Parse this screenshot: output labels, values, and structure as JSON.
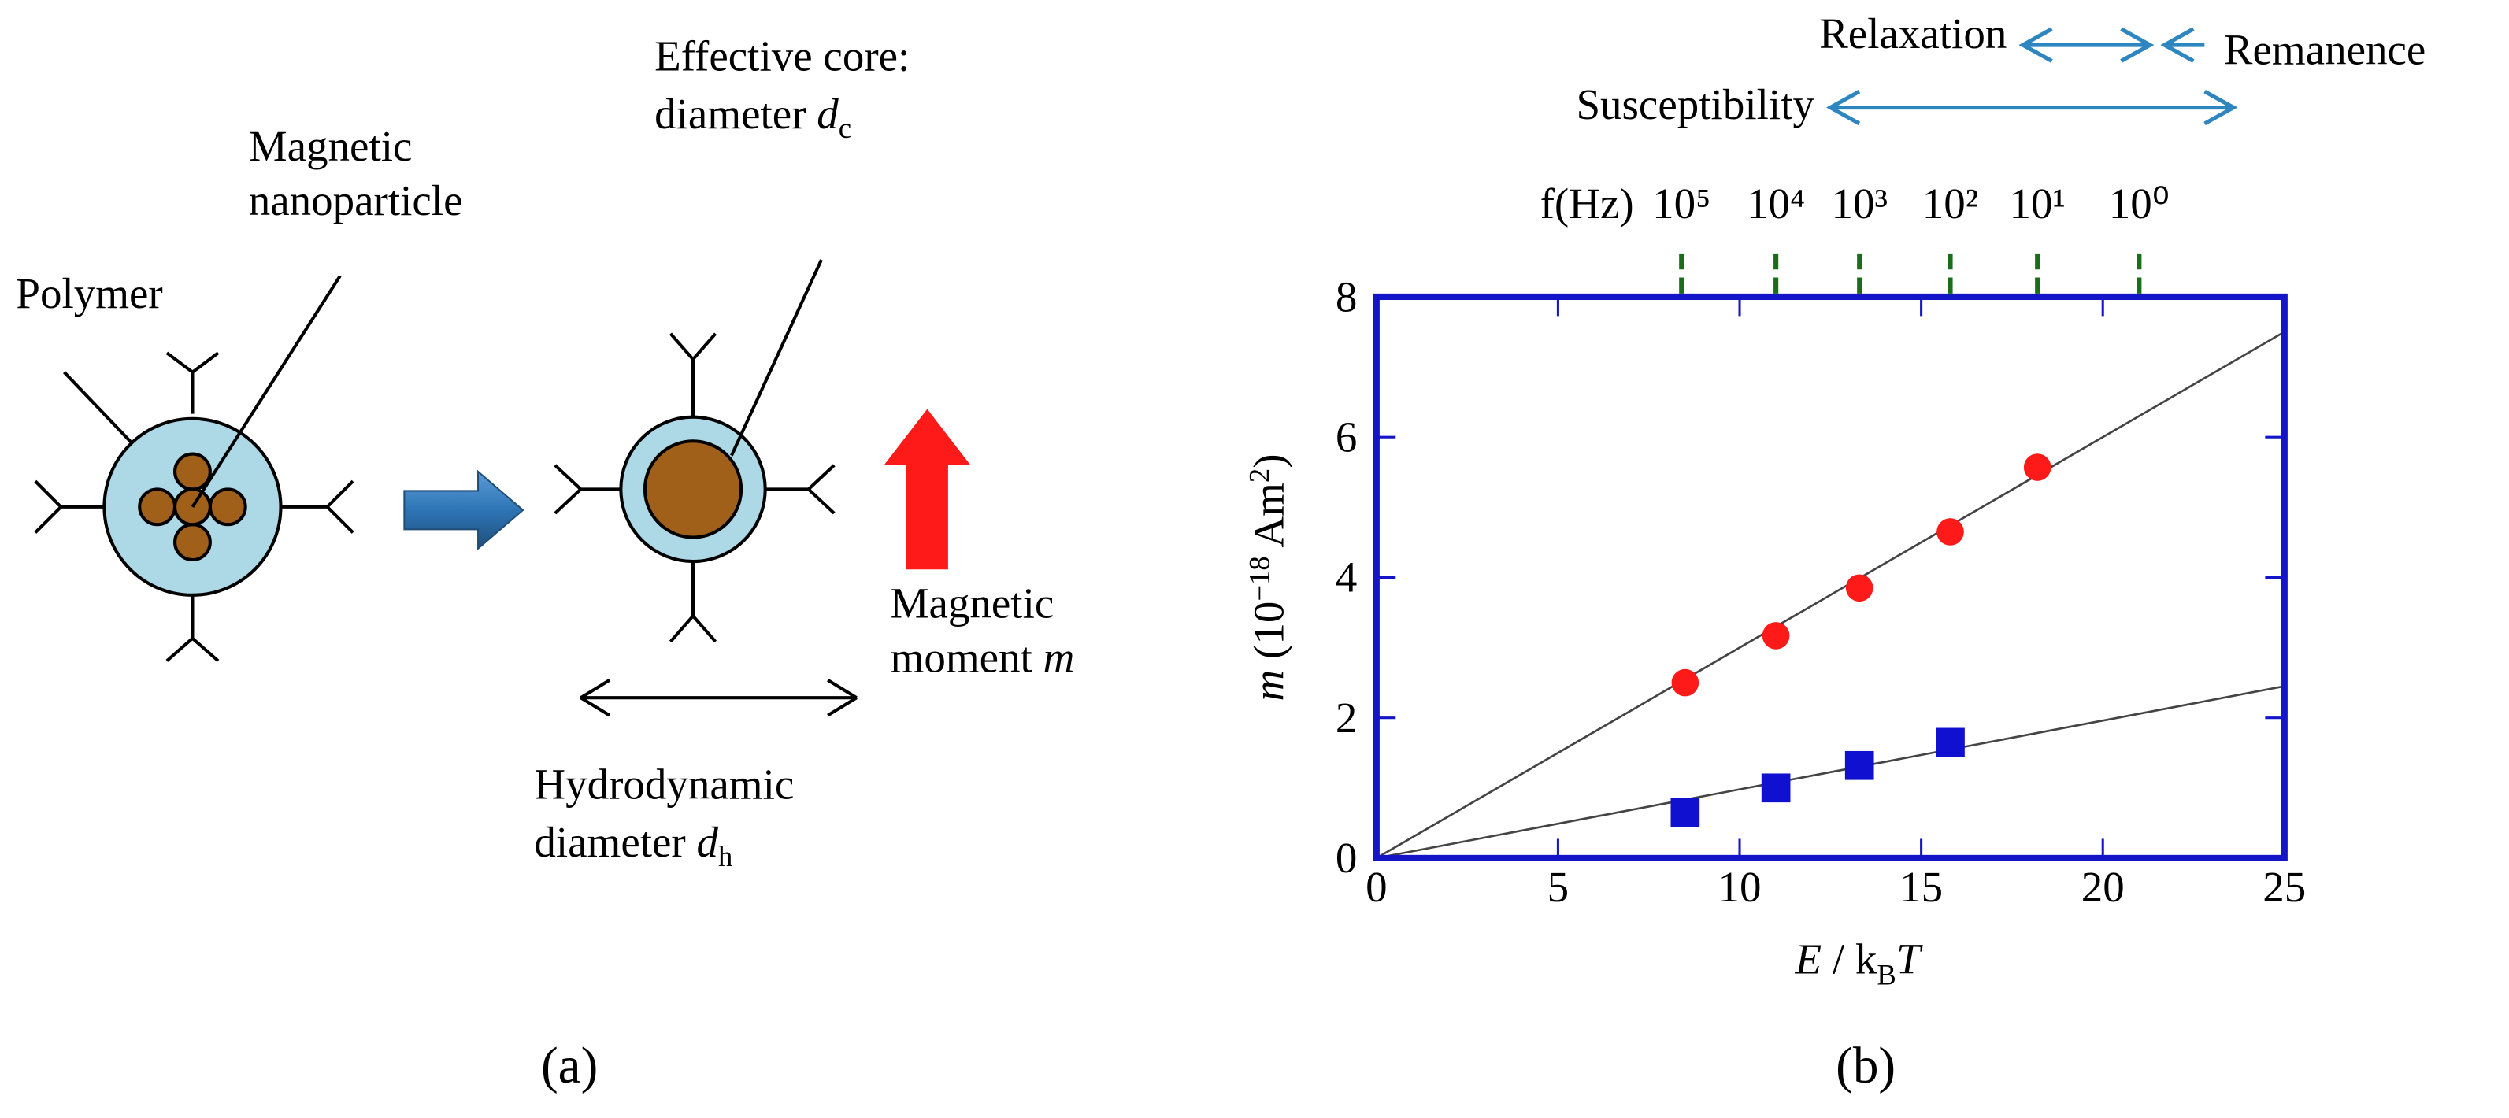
{
  "panel_a": {
    "label": "(a)",
    "polymer": "Polymer",
    "nanoparticle": [
      "Magnetic",
      "nanoparticle"
    ],
    "core": [
      "Effective core:",
      "diameter ",
      "d",
      "c"
    ],
    "moment": [
      "Magnetic",
      "moment ",
      "m"
    ],
    "hydro": [
      "Hydrodynamic",
      "diameter ",
      "d",
      "h"
    ]
  },
  "chart_data": {
    "type": "scatter",
    "label": "(b)",
    "x_label": [
      "E",
      " / k",
      "B",
      "T"
    ],
    "y_label": [
      "m",
      " (10",
      "−18",
      " Am",
      "2",
      ")"
    ],
    "xlim": [
      0,
      25
    ],
    "ylim": [
      0,
      8
    ],
    "xticks": [
      0,
      5,
      10,
      15,
      20,
      25
    ],
    "yticks": [
      0,
      2,
      4,
      6,
      8
    ],
    "frame_color": "#1414c8",
    "series": [
      {
        "color": "#ff1a1a",
        "marker": "circle",
        "x": [
          8.5,
          11,
          13.3,
          15.8,
          18.2
        ],
        "values": [
          2.5,
          3.17,
          3.85,
          4.65,
          5.57
        ]
      },
      {
        "color": "#1010d0",
        "marker": "square",
        "x": [
          8.5,
          11,
          13.3,
          15.8
        ],
        "values": [
          0.65,
          1.0,
          1.32,
          1.65
        ]
      }
    ],
    "fits": [
      {
        "color": "#444444",
        "x": [
          0,
          25
        ],
        "values": [
          0,
          7.5
        ]
      },
      {
        "color": "#444444",
        "x": [
          0,
          25
        ],
        "values": [
          0,
          2.45
        ]
      }
    ],
    "freq_axis": {
      "label": "f(Hz)",
      "color": "#1a6e1a",
      "ticks": [
        {
          "value": 8.4,
          "label": "10⁵"
        },
        {
          "value": 11,
          "label": "10⁴"
        },
        {
          "value": 13.3,
          "label": "10³"
        },
        {
          "value": 15.8,
          "label": "10²"
        },
        {
          "value": 18.2,
          "label": "10¹"
        },
        {
          "value": 21,
          "label": "10⁰"
        }
      ]
    },
    "ranges": [
      {
        "label": "Susceptibility",
        "from": 12.5,
        "to": 23.6
      },
      {
        "label": "Relaxation",
        "from": 17.8,
        "to": 21.3
      },
      {
        "label": "Remanence",
        "from": 22.8,
        "to": 21.7
      }
    ],
    "range_color": "#2e86c1"
  }
}
